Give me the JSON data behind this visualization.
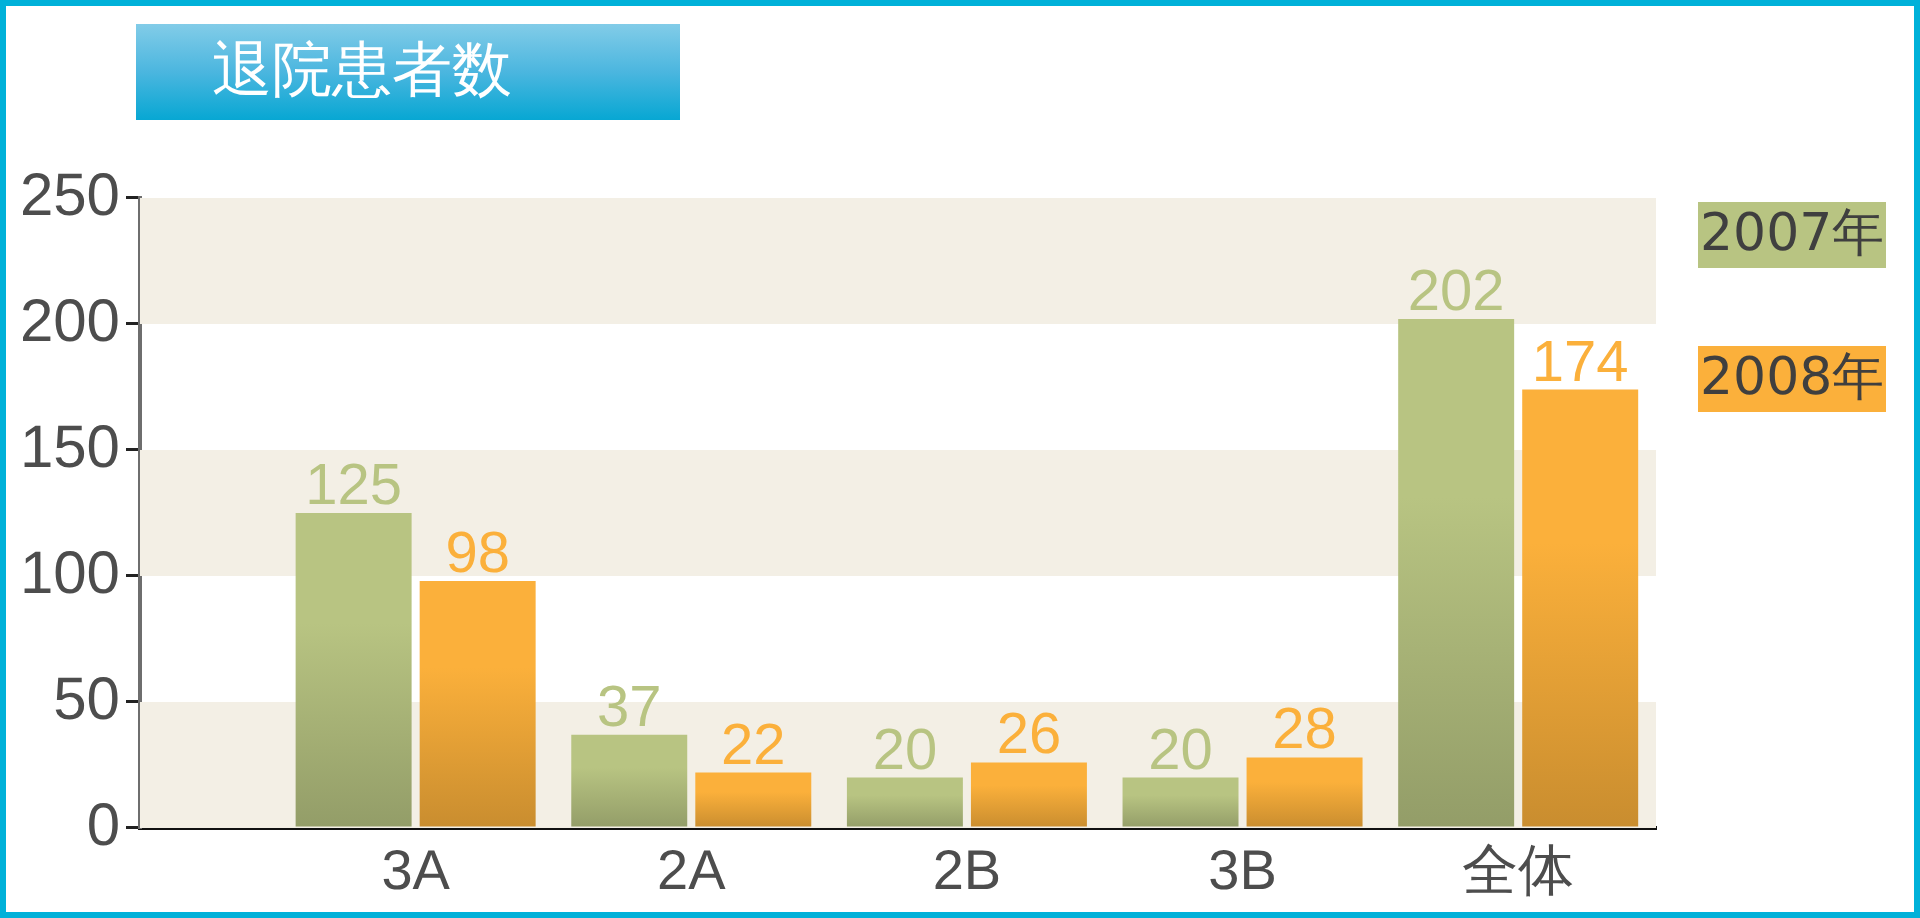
{
  "chart_data": {
    "type": "bar",
    "title": "退院患者数",
    "categories": [
      "3A",
      "2A",
      "2B",
      "3B",
      "全体"
    ],
    "series": [
      {
        "name": "2007年",
        "color": "#b8c482",
        "values": [
          125,
          37,
          20,
          20,
          202
        ]
      },
      {
        "name": "2008年",
        "color": "#fbb03b",
        "values": [
          98,
          22,
          26,
          28,
          174
        ]
      }
    ],
    "ylim": [
      0,
      250
    ],
    "yticks": [
      0,
      50,
      100,
      150,
      200,
      250
    ],
    "bands": [
      {
        "axis": "y",
        "from": 0,
        "to": 50,
        "color": "#f3efe5"
      },
      {
        "axis": "y",
        "from": 100,
        "to": 150,
        "color": "#f3efe5"
      },
      {
        "axis": "y",
        "from": 200,
        "to": 250,
        "color": "#f3efe5"
      }
    ],
    "data_labels": true,
    "legend": "right"
  }
}
